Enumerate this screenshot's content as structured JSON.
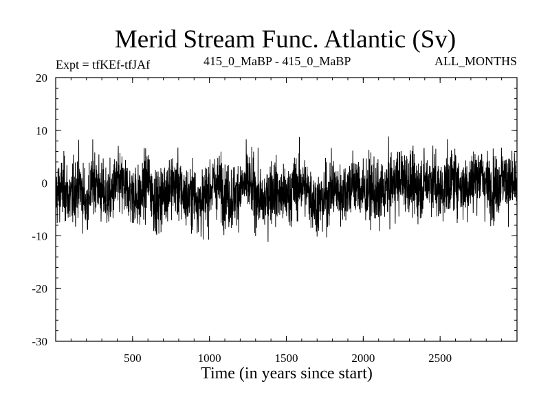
{
  "chart_data": {
    "type": "line",
    "title": "Merid Stream Func. Atlantic (Sv)",
    "subtitle_left": "Expt = tfKEf-tfJAf",
    "subtitle_center": "415_0_MaBP - 415_0_MaBP",
    "subtitle_right": "ALL_MONTHS",
    "xlabel": "Time (in years since start)",
    "ylabel": "",
    "xlim": [
      0,
      3000
    ],
    "ylim": [
      -30,
      20
    ],
    "xticks": [
      500,
      1000,
      1500,
      2000,
      2500
    ],
    "xtick_labels": [
      "500",
      "1000",
      "1500",
      "2000",
      "2500"
    ],
    "yticks": [
      20,
      10,
      0,
      -10,
      -20,
      -30
    ],
    "ytick_labels": [
      "20",
      "10",
      "0",
      "-10",
      "-20",
      "-30"
    ],
    "grid": false,
    "line_color": "#000000",
    "series": [
      {
        "x": [
          0,
          50,
          100,
          150,
          200,
          250,
          300,
          350,
          400,
          450,
          500,
          550,
          600,
          650,
          700,
          750,
          800,
          850,
          900,
          950,
          1000,
          1050,
          1100,
          1150,
          1200,
          1250,
          1300,
          1350,
          1400,
          1450,
          1500,
          1550,
          1600,
          1650,
          1700,
          1750,
          1800,
          1850,
          1900,
          1950,
          2000,
          2050,
          2100,
          2150,
          2200,
          2250,
          2300,
          2350,
          2400,
          2450,
          2500,
          2550,
          2600,
          2650,
          2700,
          2750,
          2800,
          2850,
          2900,
          2950,
          3000
        ],
        "values": [
          -2,
          -1,
          -3,
          0,
          -4,
          1,
          -2,
          -3,
          0,
          -1,
          -2,
          -3,
          1,
          -4,
          -2,
          0,
          -1,
          -3,
          -2,
          -4,
          -1,
          0,
          -2,
          -3,
          -1,
          0,
          -2,
          -4,
          -1,
          -2,
          -3,
          -1,
          0,
          -2,
          -4,
          -3,
          -1,
          -2,
          -1,
          0,
          -2,
          -1,
          -3,
          -1,
          0,
          1,
          0,
          -1,
          0,
          1,
          -2,
          0,
          1,
          -1,
          0,
          2,
          0,
          -1,
          1,
          0,
          -1
        ]
      }
    ]
  }
}
